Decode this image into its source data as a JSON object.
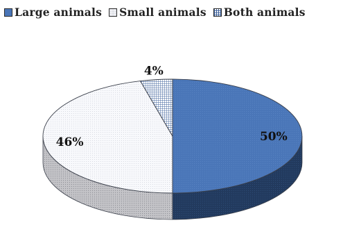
{
  "chart_data": {
    "type": "pie",
    "style": "3d",
    "categories": [
      "Large animals",
      "Small animals",
      "Both animals"
    ],
    "values": [
      50,
      46,
      4
    ],
    "data_labels": [
      "50%",
      "46%",
      "4%"
    ],
    "legend_position": "top",
    "colors": [
      "#4a76b8",
      "#f6f8fc",
      "#ffffff"
    ],
    "patterns": [
      "solid",
      "dotted",
      "grid"
    ]
  }
}
